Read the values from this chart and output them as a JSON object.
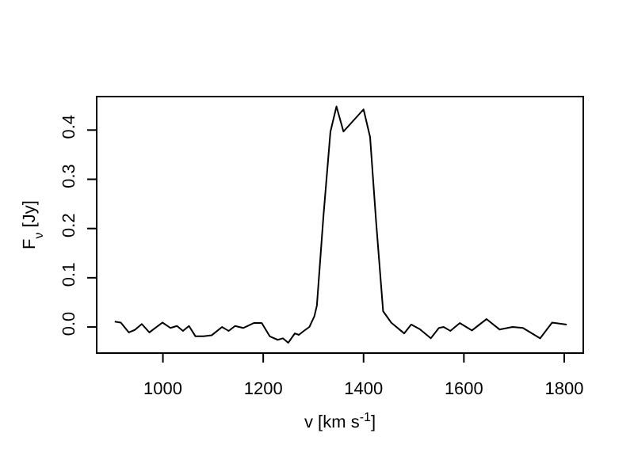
{
  "chart_data": {
    "type": "line",
    "xlabel": "v [km s$^{-1}$]",
    "ylabel": "F$_{ν}$ [Jy]",
    "x": [
      904,
      916,
      932,
      944,
      958,
      973,
      999,
      1015,
      1028,
      1040,
      1052,
      1065,
      1081,
      1097,
      1118,
      1131,
      1144,
      1160,
      1181,
      1197,
      1213,
      1229,
      1239,
      1250,
      1263,
      1271,
      1281,
      1292,
      1302,
      1307,
      1320,
      1334,
      1346,
      1360,
      1400,
      1413,
      1425,
      1439,
      1455,
      1481,
      1495,
      1513,
      1534,
      1550,
      1560,
      1573,
      1592,
      1616,
      1645,
      1671,
      1697,
      1718,
      1752,
      1776,
      1805
    ],
    "series": [
      {
        "color": "#000000",
        "values": [
          0.011,
          0.009,
          -0.011,
          -0.006,
          0.006,
          -0.011,
          0.009,
          -0.002,
          0.002,
          -0.008,
          0.002,
          -0.019,
          -0.019,
          -0.017,
          0.0,
          -0.008,
          0.002,
          -0.002,
          0.008,
          0.008,
          -0.019,
          -0.026,
          -0.023,
          -0.032,
          -0.013,
          -0.016,
          -0.008,
          0.0,
          0.022,
          0.044,
          0.225,
          0.397,
          0.448,
          0.397,
          0.442,
          0.386,
          0.214,
          0.032,
          0.009,
          -0.013,
          0.005,
          -0.005,
          -0.023,
          -0.002,
          0.0,
          -0.008,
          0.008,
          -0.007,
          0.016,
          -0.005,
          0.0,
          -0.002,
          -0.023,
          0.009,
          0.005
        ]
      }
    ],
    "xlim": [
      868,
      1838
    ],
    "xticks": [
      1000,
      1200,
      1400,
      1600,
      1800
    ],
    "ylim": [
      -0.053,
      0.468
    ],
    "yticks": [
      {
        "value": 0,
        "label": "0.0"
      },
      {
        "value": 0.1,
        "label": "0.1"
      },
      {
        "value": 0.2,
        "label": "0.2"
      },
      {
        "value": 0.3,
        "label": "0.3"
      },
      {
        "value": 0.4,
        "label": "0.4"
      }
    ],
    "marker": "none",
    "line_style": "solid"
  }
}
